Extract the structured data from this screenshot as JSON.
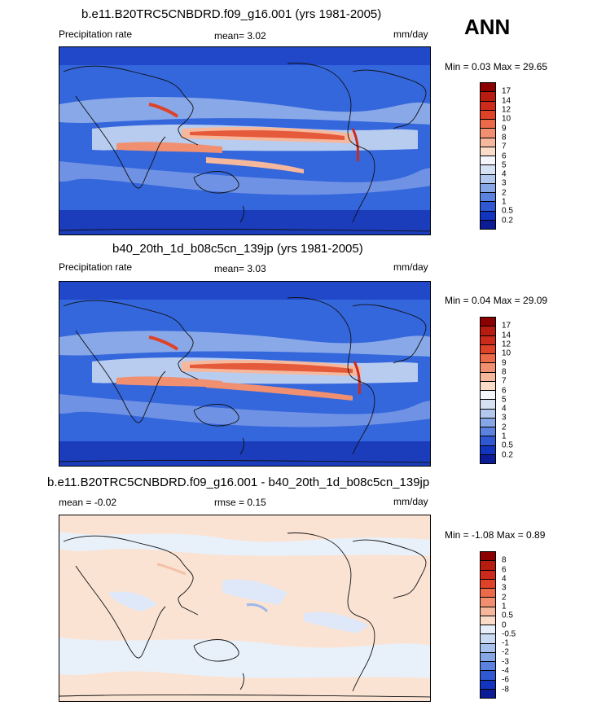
{
  "season_label": "ANN",
  "panels": [
    {
      "title": "b.e11.B20TRC5CNBDRD.f09_g16.001 (yrs 1981-2005)",
      "left_label": "Precipitation rate",
      "mid_label": "mean=   3.02",
      "unit": "mm/day",
      "minmax": "Min =   0.03 Max =  29.65"
    },
    {
      "title": "b40_20th_1d_b08c5cn_139jp (yrs 1981-2005)",
      "left_label": "Precipitation rate",
      "mid_label": "mean=   3.03",
      "unit": "mm/day",
      "minmax": "Min =   0.04 Max =  29.09"
    },
    {
      "title": "b.e11.B20TRC5CNBDRD.f09_g16.001 - b40_20th_1d_b08c5cn_139jp",
      "left_label": "mean =  -0.02",
      "mid_label": "rmse =   0.15",
      "unit": "mm/day",
      "minmax": "Min =  -1.08 Max =   0.89"
    }
  ],
  "precip_colorbar": {
    "ticks": [
      "17",
      "14",
      "12",
      "10",
      "9",
      "8",
      "7",
      "6",
      "5",
      "4",
      "3",
      "2",
      "1",
      "0.5",
      "0.2"
    ],
    "colors": [
      "#8b0000",
      "#b71c10",
      "#cc2a1c",
      "#de4228",
      "#ea6a4a",
      "#f09070",
      "#f6b89c",
      "#fbdcc8",
      "#f4f6fb",
      "#d6e2f4",
      "#b2c8ee",
      "#86a6e6",
      "#5a82de",
      "#2f58d2",
      "#1235c0",
      "#0c1c96"
    ]
  },
  "diff_colorbar": {
    "ticks": [
      "8",
      "6",
      "4",
      "3",
      "2",
      "1",
      "0.5",
      "0",
      "-0.5",
      "-1",
      "-2",
      "-3",
      "-4",
      "-6",
      "-8"
    ],
    "colors": [
      "#8b0000",
      "#b71c10",
      "#cc2a1c",
      "#de4228",
      "#ea6a4a",
      "#f09070",
      "#f6b89c",
      "#fbdcc8",
      "#e6eefa",
      "#c9daf4",
      "#a8c2ee",
      "#86a6e6",
      "#5a82de",
      "#2f58d2",
      "#1235c0",
      "#0c1c96"
    ]
  }
}
